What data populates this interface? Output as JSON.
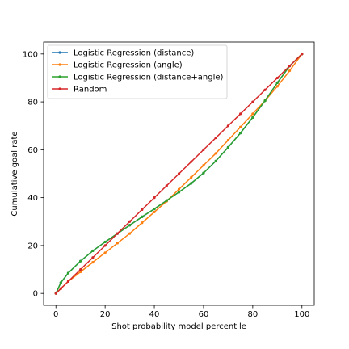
{
  "chart_data": {
    "type": "line",
    "title": "",
    "xlabel": "Shot probability model percentile",
    "ylabel": "Cumulative goal rate",
    "xlim": [
      -5,
      105
    ],
    "ylim": [
      -5,
      105
    ],
    "xticks": [
      0,
      20,
      40,
      60,
      80,
      100
    ],
    "yticks": [
      0,
      20,
      40,
      60,
      80,
      100
    ],
    "grid": false,
    "legend_position": "top-left",
    "x": [
      0,
      2,
      5,
      10,
      15,
      20,
      25,
      30,
      35,
      40,
      45,
      50,
      55,
      60,
      65,
      70,
      75,
      80,
      85,
      90,
      95,
      100
    ],
    "series": [
      {
        "name": "Logistic Regression (distance)",
        "color": "#1f77b4",
        "values": [
          0,
          4.5,
          8.5,
          13.5,
          17.8,
          21.5,
          25,
          28.5,
          32,
          35.3,
          38.8,
          42.3,
          46,
          50.3,
          55.3,
          61,
          67,
          73.5,
          80.5,
          88,
          95,
          100
        ]
      },
      {
        "name": "Logistic Regression (angle)",
        "color": "#ff7f0e",
        "values": [
          0,
          2,
          5,
          9,
          13,
          17,
          21,
          25,
          29.5,
          34,
          38.5,
          43.5,
          48.5,
          53.5,
          58.5,
          64,
          69.5,
          75,
          80.5,
          86.5,
          93,
          100
        ]
      },
      {
        "name": "Logistic Regression (distance+angle)",
        "color": "#2ca02c",
        "values": [
          0,
          4.5,
          8.5,
          13.5,
          17.8,
          21.5,
          25,
          28.5,
          32,
          35.3,
          38.8,
          42.3,
          46,
          50.3,
          55.3,
          61,
          67,
          73.5,
          80.5,
          88,
          95,
          100
        ]
      },
      {
        "name": "Random",
        "color": "#d62728",
        "values": [
          0,
          2,
          5,
          10,
          15,
          20,
          25,
          30,
          35,
          40,
          45,
          50,
          55,
          60,
          65,
          70,
          75,
          80,
          85,
          90,
          95,
          100
        ]
      }
    ]
  }
}
